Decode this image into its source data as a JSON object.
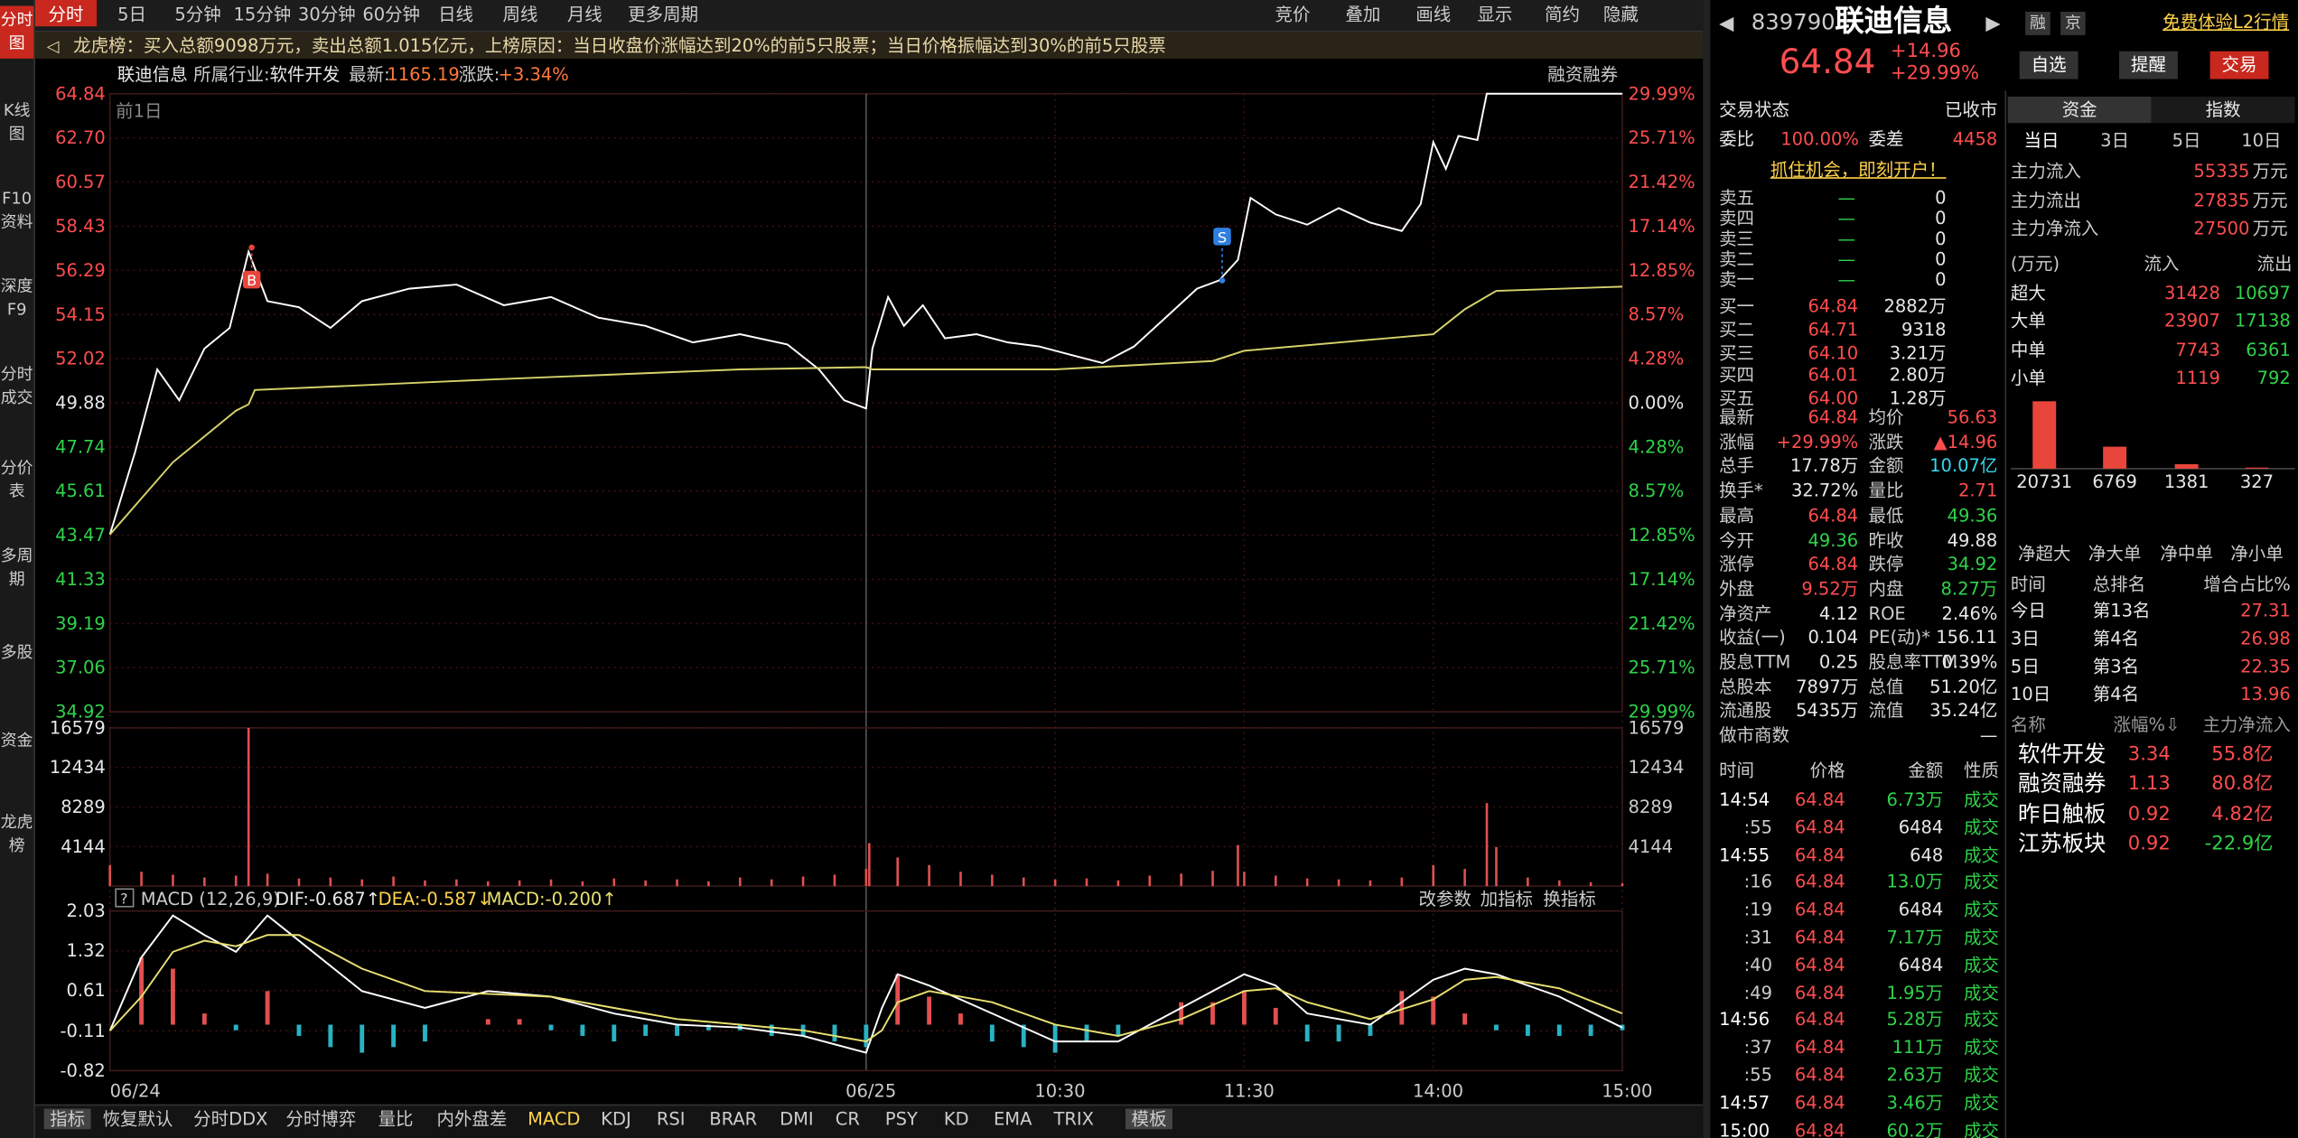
{
  "sidebar": [
    "分时图",
    "K线图",
    "F10资料",
    "深度F9",
    "分时成交",
    "分价表",
    "多周期",
    "多股",
    "资金",
    "龙虎榜"
  ],
  "toolbar": {
    "left": [
      "分时",
      "5日",
      "5分钟",
      "15分钟",
      "30分钟",
      "60分钟",
      "日线",
      "周线",
      "月线",
      "更多周期"
    ],
    "right": [
      "竞价",
      "叠加",
      "画线",
      "显示",
      "简约",
      "隐藏"
    ]
  },
  "banner": "龙虎榜：买入总额9098万元，卖出总额1.015亿元，上榜原因：当日收盘价涨幅达到20%的前5只股票；当日价格振幅达到30%的前5只股票",
  "info": {
    "name": "联迪信息",
    "industry_label": "所属行业:",
    "industry": "软件开发",
    "latest_label": "最新:",
    "latest": "1165.19",
    "change_label": "涨跌:",
    "change": "+3.34%",
    "margin": "融资融券"
  },
  "chart_data": [
    {
      "type": "line",
      "annotation": "前1日",
      "xlim": [
        0,
        480
      ],
      "xticks": [
        {
          "value": 0,
          "label": "06/24"
        },
        {
          "value": 240,
          "label": "06/25"
        },
        {
          "value": 300,
          "label": "10:30"
        },
        {
          "value": 360,
          "label": "11:30"
        },
        {
          "value": 420,
          "label": "14:00"
        },
        {
          "value": 480,
          "label": "15:00"
        }
      ],
      "ylim": [
        34.92,
        64.84
      ],
      "yticks": [
        64.84,
        {
          "value": 62.7,
          "label": "62.70"
        },
        60.57,
        58.43,
        56.29,
        54.15,
        52.02,
        49.88,
        47.74,
        45.61,
        43.47,
        41.33,
        39.19,
        37.06,
        34.92
      ],
      "y2lim": [
        -29.99,
        29.99
      ],
      "y2ticks": [
        {
          "value": 29.99,
          "label": "29.99%"
        },
        {
          "value": 25.71,
          "label": "25.71%"
        },
        {
          "value": 21.42,
          "label": "21.42%"
        },
        {
          "value": 17.14,
          "label": "17.14%"
        },
        {
          "value": 12.85,
          "label": "12.85%"
        },
        {
          "value": 8.57,
          "label": "8.57%"
        },
        {
          "value": 4.28,
          "label": "4.28%"
        },
        {
          "value": 0,
          "label": "0.00%"
        },
        {
          "value": -4.28,
          "label": "4.28%"
        },
        {
          "value": -8.57,
          "label": "8.57%"
        },
        {
          "value": -12.85,
          "label": "12.85%"
        },
        {
          "value": -17.14,
          "label": "17.14%"
        },
        {
          "value": -21.42,
          "label": "21.42%"
        },
        {
          "value": -25.71,
          "label": "25.71%"
        },
        {
          "value": -29.99,
          "label": "29.99%"
        }
      ],
      "grid": true,
      "series": [
        {
          "color": "#ffffff",
          "x": [
            0,
            8,
            15,
            22,
            30,
            38,
            44,
            50,
            60,
            70,
            80,
            95,
            110,
            125,
            140,
            155,
            170,
            185,
            200,
            215,
            225,
            233,
            240,
            242,
            247,
            252,
            258,
            265,
            275,
            285,
            295,
            305,
            315,
            325,
            335,
            345,
            352,
            358,
            362,
            370,
            380,
            390,
            400,
            410,
            416,
            420,
            424,
            428,
            434,
            437,
            480
          ],
          "values": [
            43.5,
            47.5,
            51.5,
            50.0,
            52.5,
            53.5,
            57.2,
            54.8,
            54.5,
            53.5,
            54.8,
            55.4,
            55.6,
            54.6,
            55.0,
            54.0,
            53.6,
            52.8,
            53.2,
            52.7,
            51.5,
            50.0,
            49.6,
            52.5,
            55.0,
            53.6,
            54.6,
            53.0,
            53.2,
            52.8,
            52.6,
            52.2,
            51.8,
            52.6,
            54.0,
            55.4,
            55.8,
            56.8,
            59.8,
            59.0,
            58.5,
            59.3,
            58.6,
            58.2,
            59.5,
            62.5,
            61.2,
            62.8,
            62.6,
            64.84,
            64.84
          ]
        },
        {
          "color": "#d6d36a",
          "x": [
            0,
            20,
            40,
            44,
            46,
            120,
            200,
            240,
            242,
            300,
            350,
            360,
            420,
            430,
            440,
            480
          ],
          "values": [
            43.5,
            47.0,
            49.5,
            49.8,
            50.5,
            51.0,
            51.5,
            51.6,
            51.5,
            51.5,
            51.9,
            52.4,
            53.2,
            54.4,
            55.3,
            55.5
          ]
        }
      ],
      "markers": [
        {
          "label": "B",
          "x": 45,
          "value": 57.4,
          "color": "#e8453c"
        },
        {
          "label": "S",
          "x": 353,
          "value": 55.8,
          "color": "#2f7fe0"
        }
      ]
    },
    {
      "type": "bar",
      "color": "#e0504f",
      "xlim": [
        0,
        480
      ],
      "ylim": [
        0,
        16579
      ],
      "yticks": [
        16579,
        12434,
        8289,
        4144
      ],
      "x": [
        0,
        10,
        20,
        30,
        40,
        44,
        50,
        60,
        70,
        80,
        90,
        100,
        110,
        120,
        130,
        140,
        150,
        160,
        170,
        180,
        190,
        200,
        210,
        220,
        230,
        240,
        241,
        250,
        260,
        270,
        280,
        290,
        300,
        310,
        320,
        330,
        340,
        350,
        358,
        360,
        370,
        380,
        390,
        400,
        410,
        420,
        430,
        437,
        440,
        450,
        460,
        470,
        480
      ],
      "values": [
        2200,
        1500,
        1200,
        900,
        1100,
        16579,
        1300,
        800,
        900,
        700,
        1000,
        600,
        700,
        500,
        600,
        700,
        500,
        800,
        600,
        700,
        500,
        900,
        700,
        1000,
        1200,
        1800,
        4500,
        3000,
        2200,
        1500,
        1200,
        900,
        700,
        800,
        600,
        1100,
        1300,
        1600,
        4300,
        1500,
        1100,
        800,
        700,
        600,
        900,
        2200,
        1800,
        8700,
        4100,
        900,
        600,
        400,
        300
      ]
    },
    {
      "type": "macd",
      "title": "MACD (12,26,9)",
      "dif_label": "DIF:-0.687↑",
      "dea_label": "DEA:-0.587↓",
      "macd_label": "MACD:-0.200↑",
      "actions": [
        "改参数",
        "加指标",
        "换指标"
      ],
      "xlim": [
        0,
        480
      ],
      "ylim": [
        -0.82,
        2.03
      ],
      "yticks": [
        2.03,
        1.32,
        0.61,
        -0.11,
        -0.82
      ],
      "series": [
        {
          "color": "#ffffff",
          "x": [
            0,
            10,
            20,
            30,
            40,
            50,
            60,
            80,
            100,
            120,
            140,
            160,
            180,
            200,
            220,
            240,
            245,
            250,
            260,
            280,
            300,
            320,
            340,
            350,
            360,
            370,
            380,
            400,
            420,
            430,
            440,
            460,
            480
          ],
          "values": [
            -0.11,
            1.2,
            1.95,
            1.6,
            1.3,
            1.95,
            1.5,
            0.6,
            0.3,
            0.6,
            0.5,
            0.2,
            0.0,
            -0.05,
            -0.2,
            -0.5,
            0.3,
            0.9,
            0.7,
            0.2,
            -0.3,
            -0.3,
            0.3,
            0.6,
            0.9,
            0.7,
            0.2,
            0.0,
            0.8,
            1.0,
            0.9,
            0.5,
            -0.05
          ]
        },
        {
          "color": "#e8e070",
          "x": [
            0,
            10,
            20,
            30,
            40,
            50,
            60,
            80,
            100,
            120,
            140,
            160,
            180,
            200,
            220,
            240,
            245,
            250,
            260,
            280,
            300,
            320,
            340,
            350,
            360,
            370,
            380,
            400,
            420,
            430,
            440,
            460,
            480
          ],
          "values": [
            -0.11,
            0.5,
            1.3,
            1.5,
            1.4,
            1.6,
            1.6,
            1.0,
            0.6,
            0.55,
            0.5,
            0.3,
            0.1,
            0.0,
            -0.1,
            -0.3,
            -0.1,
            0.4,
            0.6,
            0.4,
            0.0,
            -0.2,
            0.1,
            0.35,
            0.6,
            0.65,
            0.4,
            0.1,
            0.45,
            0.8,
            0.85,
            0.65,
            0.2
          ]
        }
      ],
      "hist": {
        "up_color": "#e0504f",
        "down_color": "#27b3c4",
        "x": [
          0,
          10,
          20,
          30,
          40,
          50,
          60,
          70,
          80,
          90,
          100,
          110,
          120,
          130,
          140,
          150,
          160,
          170,
          180,
          190,
          200,
          210,
          220,
          230,
          240,
          250,
          260,
          270,
          280,
          290,
          300,
          310,
          320,
          330,
          340,
          350,
          360,
          370,
          380,
          390,
          400,
          410,
          420,
          430,
          440,
          450,
          460,
          470,
          480
        ],
        "values": [
          0,
          1.2,
          1.0,
          0.2,
          -0.1,
          0.6,
          -0.2,
          -0.4,
          -0.5,
          -0.4,
          -0.3,
          0.0,
          0.1,
          0.1,
          -0.1,
          -0.2,
          -0.3,
          -0.2,
          -0.2,
          -0.1,
          -0.1,
          -0.2,
          -0.2,
          -0.3,
          -0.4,
          0.9,
          0.5,
          0.2,
          -0.3,
          -0.4,
          -0.5,
          -0.3,
          -0.2,
          0.0,
          0.4,
          0.4,
          0.6,
          0.3,
          -0.3,
          -0.3,
          -0.2,
          0.6,
          0.5,
          0.2,
          -0.1,
          -0.2,
          -0.2,
          -0.2,
          -0.1
        ]
      }
    }
  ],
  "bottom_tabs": [
    "指标",
    "恢复默认",
    "分时DDX",
    "分时博弈",
    "量比",
    "内外盘差",
    "MACD",
    "KDJ",
    "RSI",
    "BRAR",
    "DMI",
    "CR",
    "PSY",
    "KD",
    "EMA",
    "TRIX",
    "模板"
  ],
  "quote": {
    "code": "839790",
    "name": "联迪信息",
    "tags": [
      "融",
      "京"
    ],
    "l2": "免费体验L2行情",
    "price": "64.84",
    "change": "+14.96",
    "pct": "+29.99%",
    "buttons": [
      "自选",
      "提醒",
      "交易"
    ],
    "status_label": "交易状态",
    "status": "已收市",
    "wb_label": "委比",
    "wb": "100.00%",
    "wc_label": "委差",
    "wc": "4458",
    "promo": "抓住机会，即刻开户！",
    "sell": [
      [
        "卖五",
        "—",
        "0"
      ],
      [
        "卖四",
        "—",
        "0"
      ],
      [
        "卖三",
        "—",
        "0"
      ],
      [
        "卖二",
        "—",
        "0"
      ],
      [
        "卖一",
        "—",
        "0"
      ]
    ],
    "buy": [
      [
        "买一",
        "64.84",
        "2882万"
      ],
      [
        "买二",
        "64.71",
        "9318"
      ],
      [
        "买三",
        "64.10",
        "3.21万"
      ],
      [
        "买四",
        "64.01",
        "2.80万"
      ],
      [
        "买五",
        "64.00",
        "1.28万"
      ]
    ],
    "stats": [
      [
        "最新",
        "64.84",
        "均价",
        "56.63"
      ],
      [
        "涨幅",
        "+29.99%",
        "涨跌",
        "▲14.96"
      ],
      [
        "总手",
        "17.78万",
        "金额",
        "10.07亿"
      ],
      [
        "换手*",
        "32.72%",
        "量比",
        "2.71"
      ],
      [
        "最高",
        "64.84",
        "最低",
        "49.36"
      ],
      [
        "今开",
        "49.36",
        "昨收",
        "49.88"
      ],
      [
        "涨停",
        "64.84",
        "跌停",
        "34.92"
      ],
      [
        "外盘",
        "9.52万",
        "内盘",
        "8.27万"
      ],
      [
        "净资产",
        "4.12",
        "ROE",
        "2.46%"
      ],
      [
        "收益(一)",
        "0.104",
        "PE(动)*",
        "156.11"
      ],
      [
        "股息TTM",
        "0.25",
        "股息率TTM",
        "0.39%"
      ],
      [
        "总股本",
        "7897万",
        "总值",
        "51.20亿"
      ],
      [
        "流通股",
        "5435万",
        "流值",
        "35.24亿"
      ],
      [
        "做市商数",
        "—"
      ]
    ],
    "trades_header": [
      "时间",
      "价格",
      "金额",
      "性质"
    ],
    "trades": [
      [
        "14:54",
        "64.84",
        "6.73万",
        "成交"
      ],
      [
        ":55",
        "64.84",
        "6484",
        "成交"
      ],
      [
        "14:55",
        "64.84",
        "648",
        "成交"
      ],
      [
        ":16",
        "64.84",
        "13.0万",
        "成交"
      ],
      [
        ":19",
        "64.84",
        "6484",
        "成交"
      ],
      [
        ":31",
        "64.84",
        "7.17万",
        "成交"
      ],
      [
        ":40",
        "64.84",
        "6484",
        "成交"
      ],
      [
        ":49",
        "64.84",
        "1.95万",
        "成交"
      ],
      [
        "14:56",
        "64.84",
        "5.28万",
        "成交"
      ],
      [
        ":37",
        "64.84",
        "111万",
        "成交"
      ],
      [
        ":55",
        "64.84",
        "2.63万",
        "成交"
      ],
      [
        "14:57",
        "64.84",
        "3.46万",
        "成交"
      ],
      [
        "15:00",
        "64.84",
        "60.2万",
        "成交"
      ]
    ]
  },
  "funds": {
    "tabs": [
      "资金",
      "指数"
    ],
    "periods": [
      "当日",
      "3日",
      "5日",
      "10日"
    ],
    "main": [
      {
        "label": "主力流入",
        "value": "55335",
        "unit": "万元"
      },
      {
        "label": "主力流出",
        "value": "27835",
        "unit": "万元"
      },
      {
        "label": "主力净流入",
        "value": "27500",
        "unit": "万元"
      }
    ],
    "flow_header": [
      "(万元)",
      "流入",
      "流出"
    ],
    "flow": [
      [
        "超大",
        "31428",
        "10697"
      ],
      [
        "大单",
        "23907",
        "17138"
      ],
      [
        "中单",
        "7743",
        "6361"
      ],
      [
        "小单",
        "1119",
        "792"
      ]
    ],
    "net_values": [
      20731,
      6769,
      1381,
      327
    ],
    "net_labels": [
      "净超大",
      "净大单",
      "净中单",
      "净小单"
    ],
    "rank_header": [
      "时间",
      "总排名",
      "增合占比%"
    ],
    "rank": [
      [
        "今日",
        "第13名",
        "27.31"
      ],
      [
        "3日",
        "第4名",
        "26.98"
      ],
      [
        "5日",
        "第3名",
        "22.35"
      ],
      [
        "10日",
        "第4名",
        "13.96"
      ]
    ],
    "sector_header": [
      "名称",
      "涨幅%⇩",
      "主力净流入"
    ],
    "sectors": [
      [
        "软件开发",
        "3.34",
        "55.8亿"
      ],
      [
        "融资融券",
        "1.13",
        "80.8亿"
      ],
      [
        "昨日触板",
        "0.92",
        "4.82亿"
      ],
      [
        "江苏板块",
        "0.92",
        "-22.9亿"
      ]
    ]
  }
}
